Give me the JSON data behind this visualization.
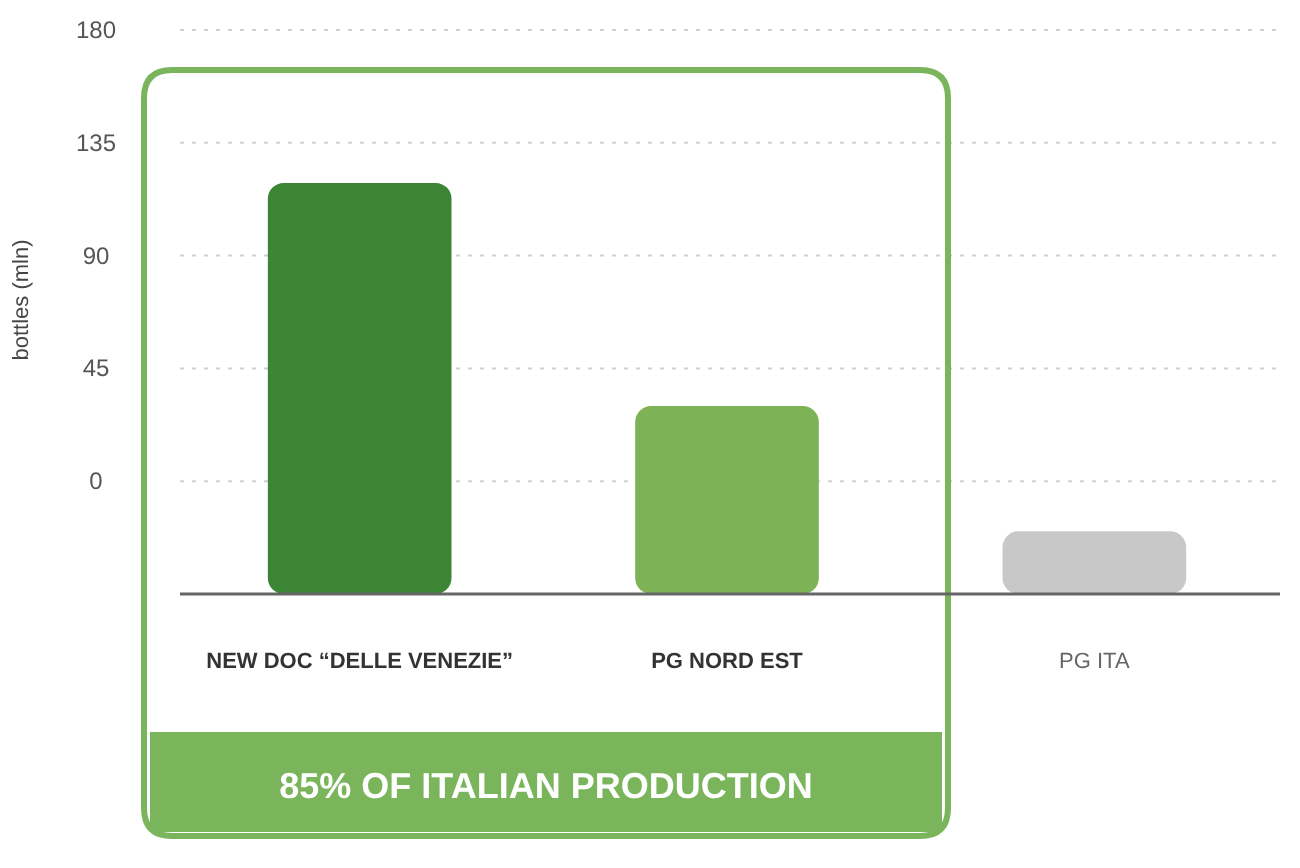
{
  "chart_data": {
    "type": "bar",
    "ylabel": "bottles (mln)",
    "categories": [
      "NEW DOC “DELLE VENEZIE”",
      "PG NORD EST",
      "PG ITA"
    ],
    "values": [
      164,
      75,
      25
    ],
    "base": [
      -45,
      -45,
      -45
    ],
    "colors": [
      "#3b8535",
      "#7db356",
      "#c8c8c8"
    ],
    "ylim": [
      -45,
      180
    ],
    "yticks": [
      180,
      135,
      90,
      45,
      0,
      {
        "value": -45,
        "label": null
      }
    ],
    "grid": "y",
    "annotations": [
      "85% OF ITALIAN PRODUCTION"
    ]
  }
}
